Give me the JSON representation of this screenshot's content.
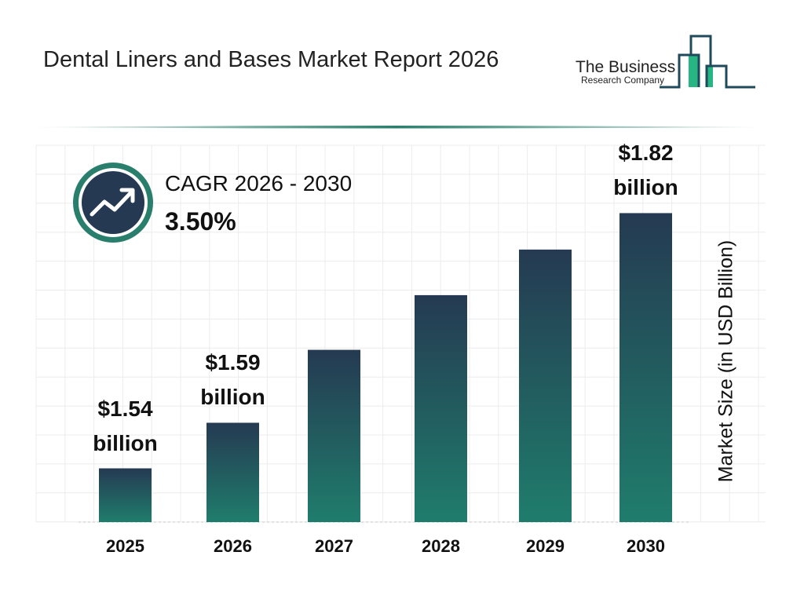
{
  "title": "Dental Liners and Bases Market Report 2026",
  "logo": {
    "line1": "The Business",
    "line2": "Research Company"
  },
  "cagr": {
    "label": "CAGR 2026 - 2030",
    "value": "3.50%",
    "icon": "trend-up-arrow-icon"
  },
  "colors": {
    "bar_top": "#253a52",
    "bar_bottom": "#1f7d6c",
    "accent": "#2a7f6c",
    "logo_green": "#27b584",
    "logo_navy": "#1f4a5c"
  },
  "chart_data": {
    "type": "bar",
    "categories": [
      "2025",
      "2026",
      "2027",
      "2028",
      "2029",
      "2030"
    ],
    "values": [
      1.54,
      1.59,
      1.67,
      1.73,
      1.78,
      1.82
    ],
    "data_labels": [
      {
        "value": "$1.54",
        "unit": "billion"
      },
      {
        "value": "$1.59",
        "unit": "billion"
      },
      null,
      null,
      null,
      {
        "value": "$1.82",
        "unit": "billion"
      }
    ],
    "title": "",
    "xlabel": "",
    "ylabel": "Market Size (in USD Billion)",
    "grid": true
  }
}
